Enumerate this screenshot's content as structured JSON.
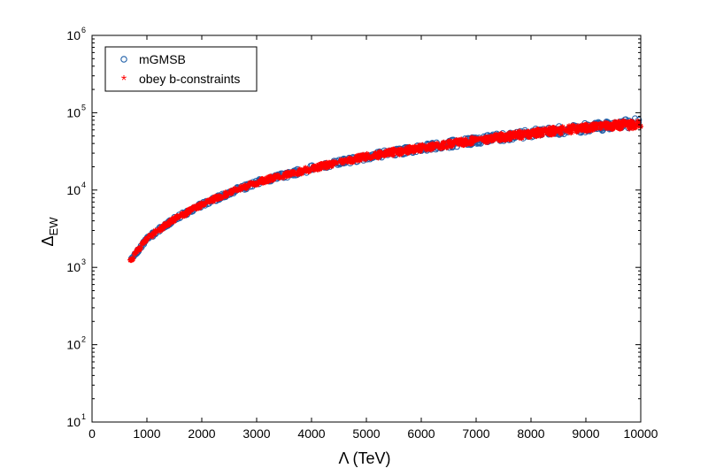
{
  "chart_data": {
    "type": "scatter",
    "x_axis": {
      "label_symbol": "Λ",
      "label_unit": "(TeV)",
      "range": [
        0,
        10000
      ],
      "ticks": [
        0,
        1000,
        2000,
        3000,
        4000,
        5000,
        6000,
        7000,
        8000,
        9000,
        10000
      ],
      "tick_labels": [
        "0",
        "1000",
        "2000",
        "3000",
        "4000",
        "5000",
        "6000",
        "7000",
        "8000",
        "9000",
        "10000"
      ]
    },
    "y_axis": {
      "label_symbol": "Δ",
      "label_subscript": "EW",
      "scale": "log",
      "range": [
        10,
        1000000
      ],
      "tick_exponents": [
        1,
        2,
        3,
        4,
        5,
        6
      ],
      "tick_base": "10"
    },
    "grid": false,
    "legend": {
      "placement": "top-left",
      "entries": [
        {
          "label": "mGMSB",
          "marker": "circle-open",
          "color": "#1f5fa8"
        },
        {
          "label": "obey b-constraints",
          "marker": "asterisk",
          "color": "#ff0000"
        }
      ]
    },
    "series": [
      {
        "name": "mGMSB",
        "marker": "circle-open",
        "color": "#1f5fa8",
        "x": [
          700,
          750,
          800,
          900,
          1000,
          1200,
          1500,
          2000,
          2500,
          3000,
          3500,
          4000,
          5000,
          6000,
          7000,
          8000,
          9000,
          10000
        ],
        "y": [
          1250,
          1380,
          1550,
          1900,
          2300,
          3000,
          4200,
          6500,
          9200,
          12500,
          15500,
          19000,
          27000,
          35000,
          44000,
          54000,
          64000,
          75000
        ],
        "y_spread": 0.06
      },
      {
        "name": "obey b-constraints",
        "marker": "asterisk",
        "color": "#ff0000",
        "x": [
          700,
          750,
          800,
          900,
          1000,
          1200,
          1500,
          2000,
          2500,
          3000,
          3500,
          4000,
          5000,
          6000,
          7000,
          8000,
          9000,
          10000
        ],
        "y": [
          1250,
          1380,
          1550,
          1900,
          2300,
          3000,
          4200,
          6500,
          9200,
          12500,
          15500,
          19000,
          27000,
          35000,
          44000,
          54000,
          64000,
          72000
        ],
        "y_spread": 0.05
      }
    ]
  }
}
